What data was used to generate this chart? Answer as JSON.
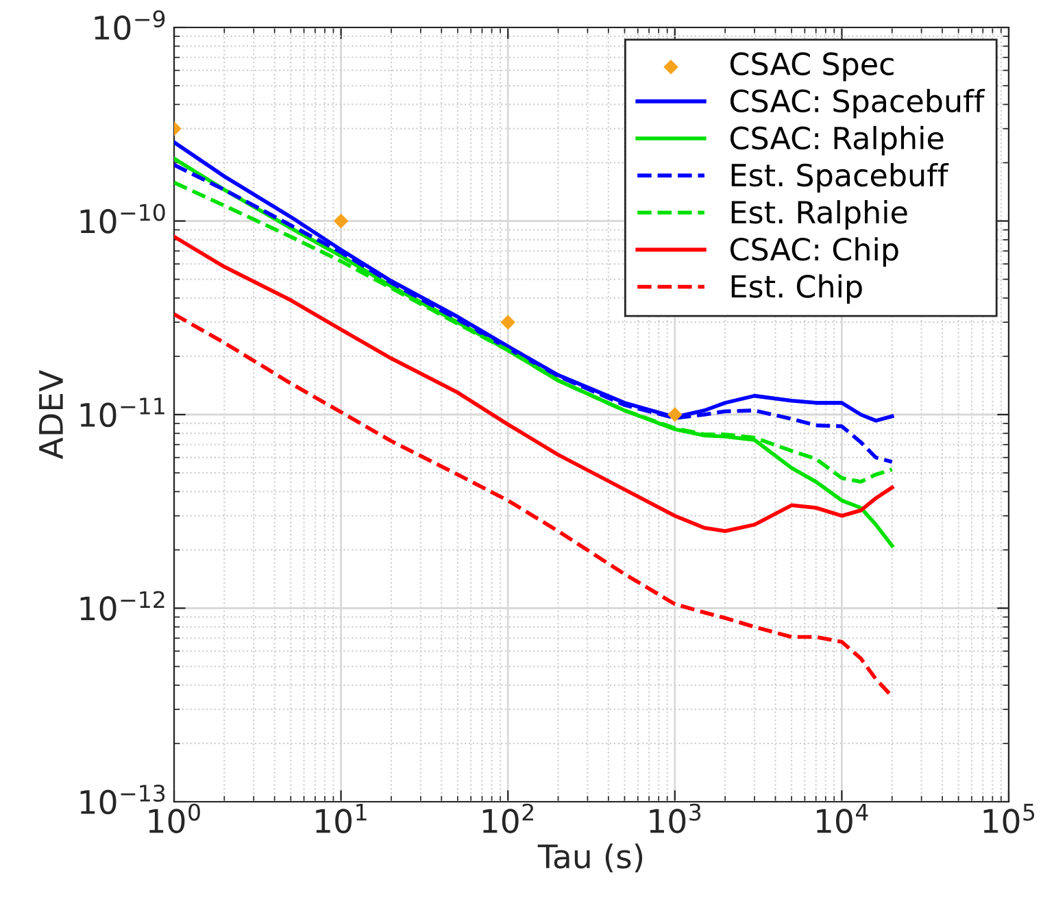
{
  "chart_data": {
    "type": "line",
    "xlabel": "Tau (s)",
    "ylabel": "ADEV",
    "log": "xy",
    "grid": true,
    "legend": "top right",
    "xlim": [
      1,
      100000
    ],
    "xticks": [
      {
        "value": 1,
        "label": "10$^{0}$"
      },
      {
        "value": 10,
        "label": "10$^{1}$"
      },
      {
        "value": 100,
        "label": "10$^{2}$"
      },
      {
        "value": 1000,
        "label": "10$^{3}$"
      },
      {
        "value": 10000,
        "label": "10$^{4}$"
      },
      {
        "value": 100000,
        "label": "10$^{5}$"
      }
    ],
    "ylim": [
      1e-13,
      1e-09
    ],
    "yticks": [
      {
        "value": 1e-13,
        "label": "10$^{−13}$"
      },
      {
        "value": 1e-12,
        "label": "10$^{−12}$"
      },
      {
        "value": 1e-11,
        "label": "10$^{−11}$"
      },
      {
        "value": 1e-10,
        "label": "10$^{−10}$"
      },
      {
        "value": 1e-09,
        "label": "10$^{−9}$"
      }
    ],
    "x": [
      1,
      2,
      5,
      10,
      20,
      50,
      100,
      200,
      500,
      1000,
      1500,
      2000,
      3000,
      5000,
      7000,
      10000,
      13000,
      16000,
      20000
    ],
    "series": [
      {
        "name": "CSAC Spec",
        "type": "scatter",
        "marker": "diamond",
        "color": "#f5a31c",
        "x": [
          1,
          10,
          100,
          1000
        ],
        "values": [
          3e-10,
          1e-10,
          3e-11,
          1e-11
        ]
      },
      {
        "name": "CSAC: Spacebuff",
        "color": "#0000ff",
        "line_style": "solid",
        "values": [
          2.55e-10,
          1.7e-10,
          1.05e-10,
          7.1e-11,
          4.9e-11,
          3.2e-11,
          2.25e-11,
          1.6e-11,
          1.15e-11,
          9.7e-12,
          1.05e-11,
          1.15e-11,
          1.25e-11,
          1.18e-11,
          1.15e-11,
          1.15e-11,
          1e-11,
          9.3e-12,
          9.8e-12
        ]
      },
      {
        "name": "CSAC: Ralphie",
        "color": "#00e000",
        "line_style": "solid",
        "values": [
          2.1e-10,
          1.45e-10,
          9.2e-11,
          6.6e-11,
          4.6e-11,
          3e-11,
          2.15e-11,
          1.5e-11,
          1.05e-11,
          8.4e-12,
          7.8e-12,
          7.7e-12,
          7.4e-12,
          5.3e-12,
          4.5e-12,
          3.6e-12,
          3.3e-12,
          2.7e-12,
          2.1e-12
        ]
      },
      {
        "name": "Est. Spacebuff",
        "color": "#0000ff",
        "line_style": "dashed",
        "values": [
          1.95e-10,
          1.45e-10,
          9.5e-11,
          6.9e-11,
          4.8e-11,
          3.1e-11,
          2.2e-11,
          1.58e-11,
          1.12e-11,
          9.6e-12,
          1e-11,
          1.04e-11,
          1.05e-11,
          9.5e-12,
          8.8e-12,
          8.7e-12,
          7.2e-12,
          6e-12,
          5.7e-12
        ]
      },
      {
        "name": "Est. Ralphie",
        "color": "#00e000",
        "line_style": "dashed",
        "values": [
          1.58e-10,
          1.2e-10,
          8.3e-11,
          6.2e-11,
          4.5e-11,
          2.95e-11,
          2.15e-11,
          1.5e-11,
          1.05e-11,
          8.5e-12,
          7.9e-12,
          7.9e-12,
          7.6e-12,
          6.5e-12,
          5.9e-12,
          4.7e-12,
          4.5e-12,
          4.9e-12,
          5.2e-12
        ]
      },
      {
        "name": "CSAC: Chip",
        "color": "#ff0000",
        "line_style": "solid",
        "values": [
          8.3e-11,
          5.8e-11,
          3.9e-11,
          2.75e-11,
          1.95e-11,
          1.3e-11,
          8.9e-12,
          6.2e-12,
          4.1e-12,
          3e-12,
          2.6e-12,
          2.5e-12,
          2.7e-12,
          3.4e-12,
          3.3e-12,
          3e-12,
          3.2e-12,
          3.7e-12,
          4.2e-12
        ]
      },
      {
        "name": "Est. Chip",
        "color": "#ff0000",
        "line_style": "dashed",
        "values": [
          3.3e-11,
          2.35e-11,
          1.45e-11,
          1.03e-11,
          7.3e-12,
          4.9e-12,
          3.6e-12,
          2.5e-12,
          1.5e-12,
          1.05e-12,
          9.5e-13,
          8.9e-13,
          8e-13,
          7.1e-13,
          7.1e-13,
          6.7e-13,
          5.5e-13,
          4.3e-13,
          3.5e-13
        ]
      }
    ]
  }
}
